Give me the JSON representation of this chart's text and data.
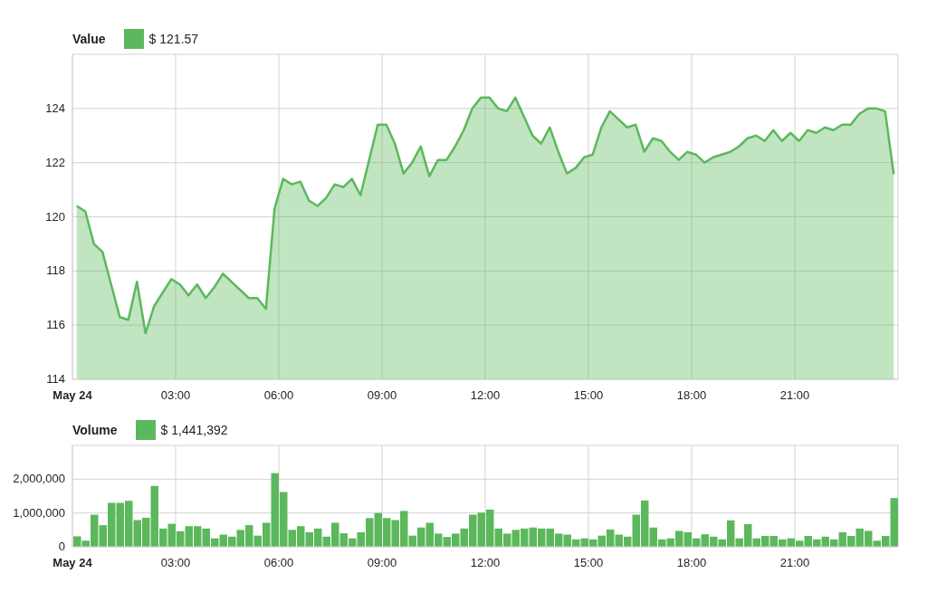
{
  "chart_data": [
    {
      "type": "area",
      "legend_title": "Value",
      "legend": "top left",
      "grid": true,
      "x": [
        0.125,
        0.375,
        0.625,
        0.875,
        1.125,
        1.375,
        1.625,
        1.875,
        2.125,
        2.375,
        2.625,
        2.875,
        3.125,
        3.375,
        3.625,
        3.875,
        4.125,
        4.375,
        4.625,
        4.875,
        5.125,
        5.375,
        5.625,
        5.875,
        6.125,
        6.375,
        6.625,
        6.875,
        7.125,
        7.375,
        7.625,
        7.875,
        8.125,
        8.375,
        8.625,
        8.875,
        9.125,
        9.375,
        9.625,
        9.875,
        10.125,
        10.375,
        10.625,
        10.875,
        11.125,
        11.375,
        11.625,
        11.875,
        12.125,
        12.375,
        12.625,
        12.875,
        13.125,
        13.375,
        13.625,
        13.875,
        14.125,
        14.375,
        14.625,
        14.875,
        15.125,
        15.375,
        15.625,
        15.875,
        16.125,
        16.375,
        16.625,
        16.875,
        17.125,
        17.375,
        17.625,
        17.875,
        18.125,
        18.375,
        18.625,
        18.875,
        19.125,
        19.375,
        19.625,
        19.875,
        20.125,
        20.375,
        20.625,
        20.875,
        21.125,
        21.375,
        21.625,
        21.875,
        22.125,
        22.375,
        22.625,
        22.875,
        23.125,
        23.375,
        23.625,
        23.875
      ],
      "xlim": [
        0,
        24
      ],
      "xticks": [
        {
          "value": 0,
          "label": "May 24"
        },
        {
          "value": 3,
          "label": "03:00"
        },
        {
          "value": 6,
          "label": "06:00"
        },
        {
          "value": 9,
          "label": "09:00"
        },
        {
          "value": 12,
          "label": "12:00"
        },
        {
          "value": 15,
          "label": "15:00"
        },
        {
          "value": 18,
          "label": "18:00"
        },
        {
          "value": 21,
          "label": "21:00"
        },
        {
          "value": 24,
          "label": null
        }
      ],
      "ylim": [
        114,
        126
      ],
      "yticks": [
        114,
        116,
        118,
        120,
        122,
        124,
        {
          "value": 126,
          "label": null
        }
      ],
      "series": [
        {
          "name": "$ 121.57",
          "color": "#5cb85c",
          "values": [
            120.4,
            120.2,
            119.0,
            118.7,
            117.5,
            116.3,
            116.2,
            117.6,
            115.7,
            116.7,
            117.2,
            117.7,
            117.5,
            117.1,
            117.5,
            117.0,
            117.4,
            117.9,
            117.6,
            117.3,
            117.0,
            117.0,
            116.6,
            120.3,
            121.4,
            121.2,
            121.3,
            120.6,
            120.4,
            120.7,
            121.2,
            121.1,
            121.4,
            120.8,
            122.1,
            123.4,
            123.4,
            122.7,
            121.6,
            122.0,
            122.6,
            121.5,
            122.1,
            122.1,
            122.6,
            123.2,
            124.0,
            124.4,
            124.4,
            124.0,
            123.9,
            124.4,
            123.7,
            123.0,
            122.7,
            123.3,
            122.4,
            121.6,
            121.8,
            122.2,
            122.3,
            123.3,
            123.9,
            123.6,
            123.3,
            123.4,
            122.4,
            122.9,
            122.8,
            122.4,
            122.1,
            122.4,
            122.3,
            122.0,
            122.2,
            122.3,
            122.4,
            122.6,
            122.9,
            123.0,
            122.8,
            123.2,
            122.8,
            123.1,
            122.8,
            123.2,
            123.1,
            123.3,
            123.2,
            123.4,
            123.4,
            123.8,
            124.0,
            124.0,
            123.9,
            121.57
          ]
        }
      ]
    },
    {
      "type": "bar",
      "legend_title": "Volume",
      "legend": "top left",
      "grid": true,
      "x": [
        0.125,
        0.375,
        0.625,
        0.875,
        1.125,
        1.375,
        1.625,
        1.875,
        2.125,
        2.375,
        2.625,
        2.875,
        3.125,
        3.375,
        3.625,
        3.875,
        4.125,
        4.375,
        4.625,
        4.875,
        5.125,
        5.375,
        5.625,
        5.875,
        6.125,
        6.375,
        6.625,
        6.875,
        7.125,
        7.375,
        7.625,
        7.875,
        8.125,
        8.375,
        8.625,
        8.875,
        9.125,
        9.375,
        9.625,
        9.875,
        10.125,
        10.375,
        10.625,
        10.875,
        11.125,
        11.375,
        11.625,
        11.875,
        12.125,
        12.375,
        12.625,
        12.875,
        13.125,
        13.375,
        13.625,
        13.875,
        14.125,
        14.375,
        14.625,
        14.875,
        15.125,
        15.375,
        15.625,
        15.875,
        16.125,
        16.375,
        16.625,
        16.875,
        17.125,
        17.375,
        17.625,
        17.875,
        18.125,
        18.375,
        18.625,
        18.875,
        19.125,
        19.375,
        19.625,
        19.875,
        20.125,
        20.375,
        20.625,
        20.875,
        21.125,
        21.375,
        21.625,
        21.875,
        22.125,
        22.375,
        22.625,
        22.875,
        23.125,
        23.375,
        23.625,
        23.875
      ],
      "xlim": [
        0,
        24
      ],
      "xticks": [
        {
          "value": 0,
          "label": "May 24"
        },
        {
          "value": 3,
          "label": "03:00"
        },
        {
          "value": 6,
          "label": "06:00"
        },
        {
          "value": 9,
          "label": "09:00"
        },
        {
          "value": 12,
          "label": "12:00"
        },
        {
          "value": 15,
          "label": "15:00"
        },
        {
          "value": 18,
          "label": "18:00"
        },
        {
          "value": 21,
          "label": "21:00"
        },
        {
          "value": 24,
          "label": null
        }
      ],
      "ylim": [
        0,
        3000000
      ],
      "yticks": [
        0,
        {
          "value": 1000000,
          "label": "1,000,000"
        },
        {
          "value": 2000000,
          "label": "2,000,000"
        },
        {
          "value": 3000000,
          "label": null
        }
      ],
      "series": [
        {
          "name": "$ 1,441,392",
          "color": "#5cb85c",
          "values": [
            310000,
            180000,
            950000,
            640000,
            1300000,
            1300000,
            1360000,
            790000,
            860000,
            1800000,
            540000,
            680000,
            460000,
            610000,
            610000,
            540000,
            250000,
            360000,
            300000,
            500000,
            640000,
            330000,
            710000,
            2180000,
            1620000,
            500000,
            610000,
            430000,
            540000,
            300000,
            710000,
            400000,
            250000,
            430000,
            850000,
            1000000,
            850000,
            790000,
            1060000,
            330000,
            570000,
            710000,
            390000,
            290000,
            390000,
            540000,
            950000,
            1010000,
            1100000,
            540000,
            390000,
            500000,
            540000,
            570000,
            540000,
            540000,
            390000,
            360000,
            220000,
            250000,
            220000,
            330000,
            510000,
            360000,
            300000,
            950000,
            1370000,
            570000,
            220000,
            250000,
            470000,
            430000,
            250000,
            370000,
            300000,
            220000,
            780000,
            250000,
            670000,
            250000,
            320000,
            320000,
            220000,
            250000,
            180000,
            320000,
            220000,
            300000,
            220000,
            430000,
            320000,
            540000,
            470000,
            180000,
            320000,
            1441392
          ]
        }
      ]
    }
  ]
}
